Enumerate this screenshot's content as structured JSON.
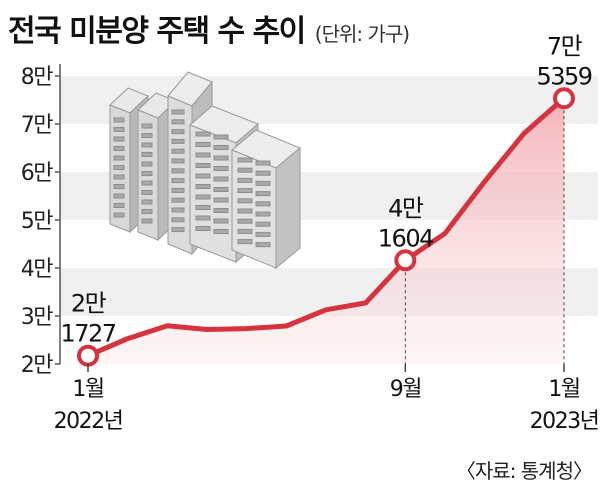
{
  "header": {
    "title": "전국 미분양 주택 수 추이",
    "unit": "(단위: 가구)"
  },
  "source": "〈자료: 통계청〉",
  "colors": {
    "line": "#d7333f",
    "marker_fill": "#ffffff",
    "area_top": "#f4a8ae",
    "band": "#f0f0f0"
  },
  "chart_data": {
    "type": "area",
    "ylim": [
      20000,
      80000
    ],
    "y_ticks": [
      {
        "value": 20000,
        "label": "2만"
      },
      {
        "value": 30000,
        "label": "3만"
      },
      {
        "value": 40000,
        "label": "4만"
      },
      {
        "value": 50000,
        "label": "5만"
      },
      {
        "value": 60000,
        "label": "6만"
      },
      {
        "value": 70000,
        "label": "7만"
      },
      {
        "value": 80000,
        "label": "8만"
      }
    ],
    "x": [
      "2022-01",
      "2022-02",
      "2022-03",
      "2022-04",
      "2022-05",
      "2022-06",
      "2022-07",
      "2022-08",
      "2022-09",
      "2022-10",
      "2022-11",
      "2022-12",
      "2023-01"
    ],
    "values": [
      21727,
      25300,
      27974,
      27180,
      27375,
      27910,
      31284,
      32722,
      41604,
      47217,
      58027,
      68107,
      75359
    ],
    "x_tick_labels": [
      {
        "index": 0,
        "lines": [
          "1월",
          "2022년"
        ]
      },
      {
        "index": 8,
        "lines": [
          "9월",
          ""
        ]
      },
      {
        "index": 12,
        "lines": [
          "1월",
          "2023년"
        ]
      }
    ],
    "annotations": [
      {
        "index": 0,
        "lines": [
          "2만",
          "1727"
        ]
      },
      {
        "index": 8,
        "lines": [
          "4만",
          "1604"
        ]
      },
      {
        "index": 12,
        "lines": [
          "7만",
          "5359"
        ]
      }
    ],
    "grid": "horizontal bands"
  }
}
